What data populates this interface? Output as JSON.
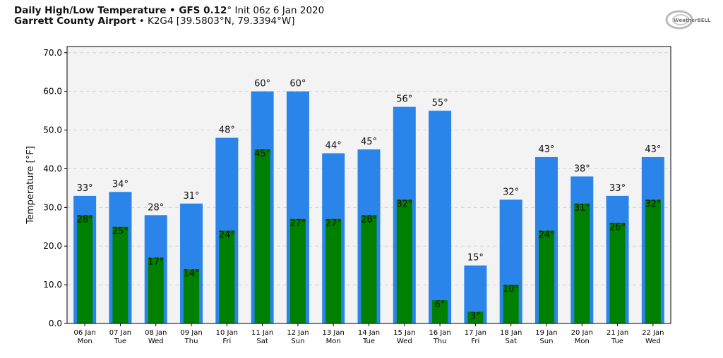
{
  "header": {
    "line1_bold": "Daily High/Low Temperature • GFS 0.12",
    "line1_deg": "°",
    "line1_rest": " Init 06z 6 Jan 2020",
    "line2_bold": "Garrett County Airport",
    "line2_rest": " • K2G4 [39.5803°N, 79.3394°W]"
  },
  "logo": {
    "text": "WeatherBELL"
  },
  "chart_data": {
    "type": "bar",
    "title": "Daily High/Low Temperature • GFS 0.12° Init 06z 6 Jan 2020",
    "ylabel": "Temperature [°F]",
    "xlabel": "",
    "ylim": [
      0,
      71.6
    ],
    "yticks": [
      "0.0",
      "10.0",
      "20.0",
      "30.0",
      "40.0",
      "50.0",
      "60.0",
      "70.0"
    ],
    "grid": true,
    "categories": [
      [
        "06 Jan",
        "Mon"
      ],
      [
        "07 Jan",
        "Tue"
      ],
      [
        "08 Jan",
        "Wed"
      ],
      [
        "09 Jan",
        "Thu"
      ],
      [
        "10 Jan",
        "Fri"
      ],
      [
        "11 Jan",
        "Sat"
      ],
      [
        "12 Jan",
        "Sun"
      ],
      [
        "13 Jan",
        "Mon"
      ],
      [
        "14 Jan",
        "Tue"
      ],
      [
        "15 Jan",
        "Wed"
      ],
      [
        "16 Jan",
        "Thu"
      ],
      [
        "17 Jan",
        "Fri"
      ],
      [
        "18 Jan",
        "Sat"
      ],
      [
        "19 Jan",
        "Sun"
      ],
      [
        "20 Jan",
        "Mon"
      ],
      [
        "21 Jan",
        "Tue"
      ],
      [
        "22 Jan",
        "Wed"
      ]
    ],
    "series": [
      {
        "name": "High",
        "color": "#2a84ea",
        "values": [
          33,
          34,
          28,
          31,
          48,
          60,
          60,
          44,
          45,
          56,
          55,
          15,
          32,
          43,
          38,
          33,
          43
        ]
      },
      {
        "name": "Low",
        "color": "#008000",
        "values": [
          28,
          25,
          17,
          14,
          24,
          45,
          27,
          27,
          28,
          32,
          6,
          3,
          10,
          24,
          31,
          26,
          32
        ]
      }
    ]
  }
}
